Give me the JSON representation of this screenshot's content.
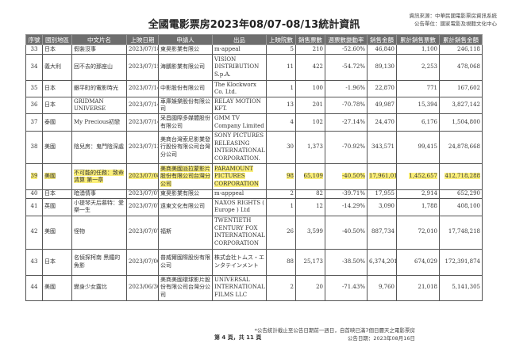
{
  "title": "全國電影票房2023年08/07-08/13統計資訊",
  "source_line": "資訊來源：中華民國電影票房資訊系統",
  "publisher_line": "公告單位：國家電影及視聽文化中心",
  "columns": [
    "序號",
    "國別地區",
    "中文片名",
    "上映日期",
    "申請人",
    "出品",
    "上映院數",
    "銷售票數",
    "週票數變動率",
    "銷售金額",
    "累計銷售票數",
    "累計銷售金額"
  ],
  "highlight_color": "#fbef7a",
  "header_color": "#6e6e6e",
  "rows": [
    {
      "no": "33",
      "country": "日本",
      "title": "假裝沒事",
      "date": "2023/07/18",
      "applicant": "東昊影業有限公",
      "producer": "m-appeal",
      "theaters": "5",
      "tickets": "210",
      "change": "-52.60%",
      "revenue": "46,840",
      "cum_tickets": "1,100",
      "cum_revenue": "246,118",
      "h": 12
    },
    {
      "no": "34",
      "country": "義大利",
      "title": "回不去的那座山",
      "date": "2023/07/15",
      "applicant": "海鵬影業有限公司",
      "producer": "VISION DISTRIBUTION S.p.A.",
      "theaters": "11",
      "tickets": "422",
      "change": "-54.72%",
      "revenue": "89,130",
      "cum_tickets": "2,253",
      "cum_revenue": "478,068",
      "h": 33
    },
    {
      "no": "35",
      "country": "日本",
      "title": "銀平町的電影時光",
      "date": "2023/07/14",
      "applicant": "中影股份有限公司",
      "producer": "The Klockworx Co. Ltd.",
      "theaters": "1",
      "tickets": "100",
      "change": "-1.96%",
      "revenue": "22,870",
      "cum_tickets": "771",
      "cum_revenue": "167,602",
      "h": 21
    },
    {
      "no": "36",
      "country": "日本",
      "title": "GRIDMAN UNIVERSE",
      "date": "2023/07/14",
      "applicant": "車庫娛樂股份有限公司",
      "producer": "RELAY MOTION KFT.",
      "theaters": "13",
      "tickets": "201",
      "change": "-70.78%",
      "revenue": "49,987",
      "cum_tickets": "15,394",
      "cum_revenue": "3,827,142",
      "h": 21
    },
    {
      "no": "37",
      "country": "泰國",
      "title": "My Precious初戀",
      "date": "2023/07/14",
      "applicant": "采昌國際多媒體股份有限公司",
      "producer": "GMM TV Company Limited",
      "theaters": "4",
      "tickets": "102",
      "change": "-27.14%",
      "revenue": "24,470",
      "cum_tickets": "6,176",
      "cum_revenue": "1,504,800",
      "h": 22
    },
    {
      "no": "38",
      "country": "美國",
      "title": "陰兒房：鬼門陰深處",
      "date": "2023/07/13",
      "applicant": "美商台灣索尼影業發行股份有限公司台灣分公司",
      "producer": "SONY PICTURES RELEASING INTERNATIONAL CORPORATION.",
      "theaters": "30",
      "tickets": "1,373",
      "change": "-70.92%",
      "revenue": "343,571",
      "cum_tickets": "99,415",
      "cum_revenue": "24,878,668",
      "h": 41
    },
    {
      "no": "39",
      "country": "美國",
      "title": "不可能的任務：致命清算 第一章",
      "date": "2023/07/08",
      "applicant": "美商美國派拉蒙影片股份有限公司台灣分公司",
      "producer": "PARAMOUNT PICTURES CORPORATION",
      "theaters": "98",
      "tickets": "65,109",
      "change": "-40.50%",
      "revenue": "17,961,010",
      "cum_tickets": "1,452,657",
      "cum_revenue": "412,718,288",
      "h": 33,
      "highlight": true
    },
    {
      "no": "40",
      "country": "日本",
      "title": "暗湧情事",
      "date": "2023/07/07",
      "applicant": "東昊影業有限公",
      "producer": "m-apppeal",
      "theaters": "2",
      "tickets": "82",
      "change": "-39.71%",
      "revenue": "17,955",
      "cum_tickets": "2,914",
      "cum_revenue": "652,290",
      "h": 10
    },
    {
      "no": "41",
      "country": "英國",
      "title": "小提琴天后慕特：愛樂一生",
      "date": "2023/07/07",
      "applicant": "遠東文化有限公司",
      "producer": "NAXOS RIGHTS ( Europe ) Ltd",
      "theaters": "1",
      "tickets": "12",
      "change": "-14.29%",
      "revenue": "3,090",
      "cum_tickets": "1,788",
      "cum_revenue": "408,100",
      "h": 22
    },
    {
      "no": "42",
      "country": "美國",
      "title": "怪物",
      "date": "2023/07/07",
      "applicant": "福斯",
      "producer": "TWENTIETH CENTURY FOX INTERNATIONAL CORPORATION",
      "theaters": "26",
      "tickets": "3,599",
      "change": "-40.50%",
      "revenue": "887,734",
      "cum_tickets": "72,010",
      "cum_revenue": "17,748,218",
      "h": 42
    },
    {
      "no": "43",
      "country": "日本",
      "title": "名偵探柯南 黑鐵的魚影",
      "date": "2023/07/06",
      "applicant": "普威爾國際股份有限公司",
      "producer": "株式会社トムス・エンタテインメント",
      "theaters": "88",
      "tickets": "25,173",
      "change": "-38.50%",
      "revenue": "6,374,201",
      "cum_tickets": "674,029",
      "cum_revenue": "172,391,874",
      "h": 33
    },
    {
      "no": "44",
      "country": "美國",
      "title": "變身少女露比",
      "date": "2023/06/30",
      "applicant": "美商美國環球影片股份有限公司台灣分公司",
      "producer": "UNIVERSAL INTERNATIONAL FILMS LLC",
      "theaters": "2",
      "tickets": "20",
      "change": "-71.43%",
      "revenue": "9,760",
      "cum_tickets": "21,018",
      "cum_revenue": "5,141,305",
      "h": 32
    }
  ],
  "footer": {
    "page": "第 4 頁，共 11 頁",
    "note": "*公告統計截止至公告日期前一週日，自首映已滿7個日曆天之電影票房",
    "date": "公告日期：2023年08月16日"
  }
}
